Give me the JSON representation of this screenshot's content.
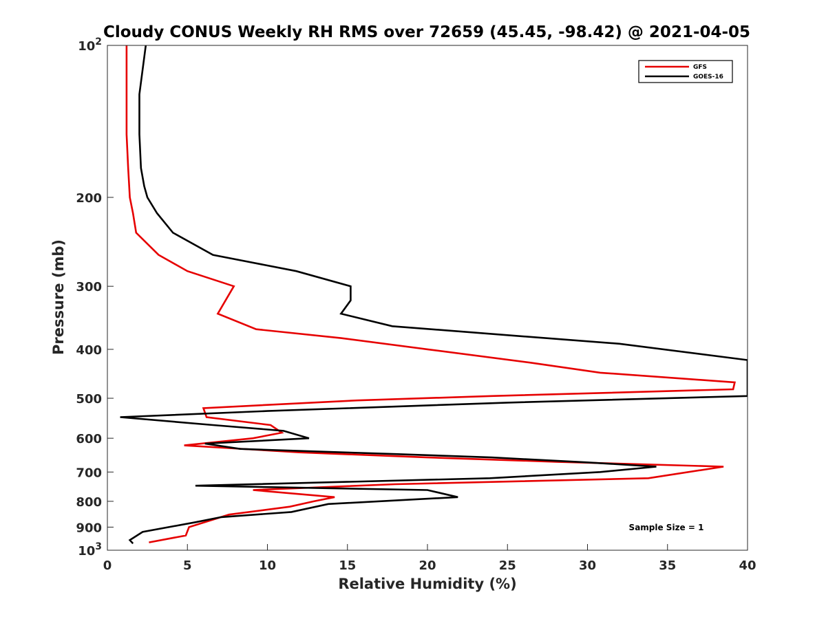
{
  "chart_data": {
    "type": "line",
    "title": "Cloudy CONUS Weekly RH RMS over 72659 (45.45, -98.42) @ 2021-04-05",
    "xlabel": "Relative Humidity (%)",
    "ylabel": "Pressure (mb)",
    "xlim": [
      0,
      40
    ],
    "ylim": [
      100,
      1000
    ],
    "y_scale": "log",
    "y_reversed": true,
    "x_ticks": [
      "0",
      "5",
      "10",
      "15",
      "20",
      "25",
      "30",
      "35",
      "40"
    ],
    "y_ticks": [
      {
        "value": 100,
        "label": "10",
        "sup": "2"
      },
      {
        "value": 200,
        "label": "200"
      },
      {
        "value": 300,
        "label": "300"
      },
      {
        "value": 400,
        "label": "400"
      },
      {
        "value": 500,
        "label": "500"
      },
      {
        "value": 600,
        "label": "600"
      },
      {
        "value": 700,
        "label": "700"
      },
      {
        "value": 800,
        "label": "800"
      },
      {
        "value": 900,
        "label": "900"
      },
      {
        "value": 1000,
        "label": "10",
        "sup": "3"
      }
    ],
    "grid": false,
    "legend_position": "top-right",
    "annotation": "Sample Size = 1",
    "series": [
      {
        "name": "GFS",
        "color": "#e60000",
        "points": [
          [
            1.2,
            100
          ],
          [
            1.2,
            125
          ],
          [
            1.2,
            150
          ],
          [
            1.3,
            175
          ],
          [
            1.4,
            200
          ],
          [
            1.6,
            215
          ],
          [
            1.8,
            235
          ],
          [
            3.2,
            260
          ],
          [
            5.0,
            280
          ],
          [
            7.9,
            300
          ],
          [
            6.9,
            340
          ],
          [
            9.3,
            365
          ],
          [
            14.6,
            380
          ],
          [
            20,
            400
          ],
          [
            26.4,
            425
          ],
          [
            30.8,
            445
          ],
          [
            39.2,
            465
          ],
          [
            39.1,
            480
          ],
          [
            24,
            495
          ],
          [
            15.6,
            505
          ],
          [
            6.0,
            523
          ],
          [
            6.2,
            545
          ],
          [
            10.2,
            565
          ],
          [
            10.9,
            585
          ],
          [
            9.1,
            600
          ],
          [
            4.8,
            620
          ],
          [
            12,
            640
          ],
          [
            20,
            655
          ],
          [
            28,
            668
          ],
          [
            38.5,
            683
          ],
          [
            33.8,
            720
          ],
          [
            18,
            740
          ],
          [
            9.1,
            760
          ],
          [
            14.2,
            785
          ],
          [
            12.9,
            800
          ],
          [
            11.4,
            820
          ],
          [
            7.6,
            850
          ],
          [
            5.1,
            900
          ],
          [
            4.9,
            935
          ],
          [
            2.6,
            965
          ]
        ]
      },
      {
        "name": "GOES-16",
        "color": "#000000",
        "points": [
          [
            2.4,
            100
          ],
          [
            2.0,
            125
          ],
          [
            2.0,
            150
          ],
          [
            2.1,
            175
          ],
          [
            2.3,
            190
          ],
          [
            2.5,
            200
          ],
          [
            3.1,
            215
          ],
          [
            4.1,
            235
          ],
          [
            6.6,
            260
          ],
          [
            11.8,
            280
          ],
          [
            15.2,
            300
          ],
          [
            15.2,
            320
          ],
          [
            14.6,
            340
          ],
          [
            17.8,
            360
          ],
          [
            25,
            375
          ],
          [
            32,
            390
          ],
          [
            40,
            420
          ],
          [
            40.0,
            495
          ],
          [
            25,
            510
          ],
          [
            10,
            530
          ],
          [
            0.8,
            545
          ],
          [
            6.6,
            565
          ],
          [
            11.0,
            580
          ],
          [
            12.6,
            600
          ],
          [
            6.1,
            615
          ],
          [
            8.3,
            630
          ],
          [
            18,
            645
          ],
          [
            24,
            655
          ],
          [
            30,
            670
          ],
          [
            34.3,
            683
          ],
          [
            30.8,
            700
          ],
          [
            23.9,
            720
          ],
          [
            5.5,
            745
          ],
          [
            20.0,
            760
          ],
          [
            21.9,
            785
          ],
          [
            13.8,
            810
          ],
          [
            11.5,
            840
          ],
          [
            7.1,
            860
          ],
          [
            5.5,
            880
          ],
          [
            2.2,
            920
          ],
          [
            1.4,
            955
          ],
          [
            1.6,
            970
          ]
        ]
      }
    ]
  }
}
